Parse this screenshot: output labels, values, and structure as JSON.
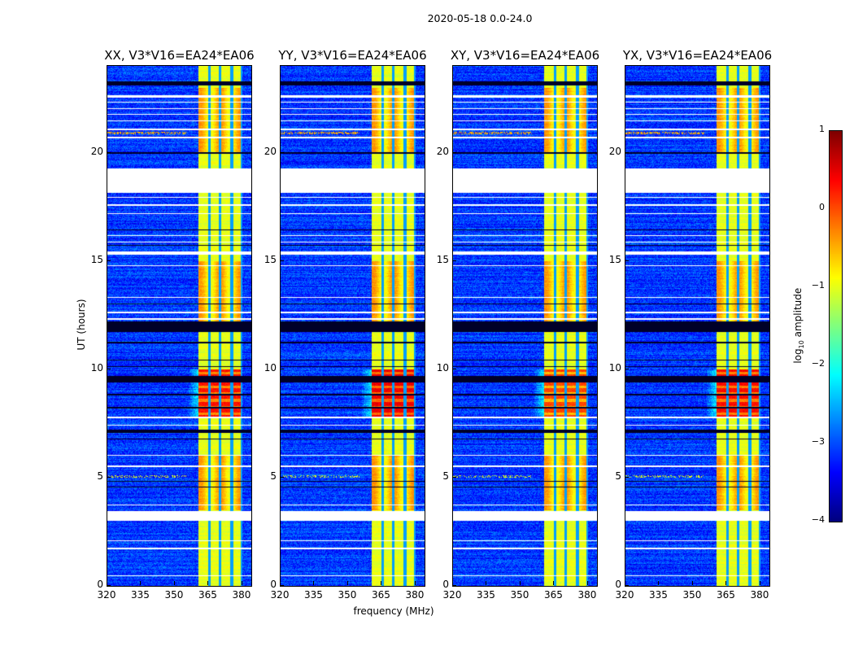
{
  "chart_data": {
    "type": "heatmap",
    "suptitle": "2020-05-18 0.0-24.0",
    "xlabel": "frequency (MHz)",
    "ylabel": "UT (hours)",
    "xlim": [
      320,
      384
    ],
    "ylim": [
      0,
      24
    ],
    "x_ticks": [
      "320",
      "335",
      "350",
      "365",
      "380"
    ],
    "x_tick_values": [
      320,
      335,
      350,
      365,
      380
    ],
    "y_ticks": [
      "0",
      "5",
      "10",
      "15",
      "20"
    ],
    "y_tick_values": [
      0,
      5,
      10,
      15,
      20
    ],
    "panels": [
      {
        "title": "XX, V3*V16=EA24*EA06",
        "hot_level": 0.3
      },
      {
        "title": "YY, V3*V16=EA24*EA06",
        "hot_level": 0.45
      },
      {
        "title": "XY, V3*V16=EA24*EA06",
        "hot_level": 0.05
      },
      {
        "title": "YX, V3*V16=EA24*EA06",
        "hot_level": 0.35
      }
    ],
    "colorbar": {
      "label_main": "log",
      "label_sub": "10",
      "label_rest": " amplitude",
      "colormap": "jet",
      "range": [
        -4,
        1
      ],
      "ticks": [
        "1",
        "0",
        "−1",
        "−2",
        "−3",
        "−4"
      ],
      "tick_values": [
        1,
        0,
        -1,
        -2,
        -3,
        -4
      ]
    },
    "background_level": -3.1,
    "rfi_band_MHz": [
      360.5,
      380
    ],
    "rfi_band_gaps_MHz": [
      365.5,
      370.2,
      375.3,
      380
    ],
    "rfi_band_level": -1.0,
    "hot_interval_hours": [
      7.8,
      10.0
    ],
    "flagged_intervals_hours": [
      [
        18.15,
        19.25
      ],
      [
        15.3,
        15.45
      ],
      [
        3.0,
        3.45
      ],
      [
        22.55,
        22.65
      ],
      [
        22.3,
        22.36
      ],
      [
        22.0,
        22.06
      ],
      [
        21.75,
        21.8
      ],
      [
        21.45,
        21.5
      ],
      [
        21.05,
        21.1
      ],
      [
        20.65,
        20.72
      ],
      [
        17.9,
        17.95
      ],
      [
        17.55,
        17.62
      ],
      [
        17.15,
        17.2
      ],
      [
        16.15,
        16.2
      ],
      [
        15.85,
        15.9
      ],
      [
        14.75,
        14.8
      ],
      [
        13.3,
        13.35
      ],
      [
        12.6,
        12.65
      ],
      [
        12.3,
        12.35
      ],
      [
        7.75,
        7.8
      ],
      [
        7.4,
        7.45
      ],
      [
        6.0,
        6.06
      ],
      [
        5.5,
        5.55
      ],
      [
        3.7,
        3.75
      ],
      [
        2.05,
        2.1
      ],
      [
        1.7,
        1.75
      ],
      [
        0.45,
        0.5
      ]
    ],
    "black_rows_hours": [
      [
        23.1,
        23.3
      ],
      [
        11.7,
        12.2
      ],
      [
        9.4,
        9.7
      ],
      [
        10.4,
        10.45
      ],
      [
        10.1,
        10.15
      ],
      [
        8.8,
        8.85
      ],
      [
        8.2,
        8.25
      ],
      [
        7.05,
        7.2
      ],
      [
        6.75,
        6.8
      ],
      [
        4.8,
        4.85
      ],
      [
        4.55,
        4.6
      ],
      [
        16.4,
        16.45
      ],
      [
        15.7,
        15.75
      ],
      [
        19.95,
        20.0
      ],
      [
        13.0,
        13.05
      ],
      [
        11.2,
        11.25
      ]
    ]
  }
}
